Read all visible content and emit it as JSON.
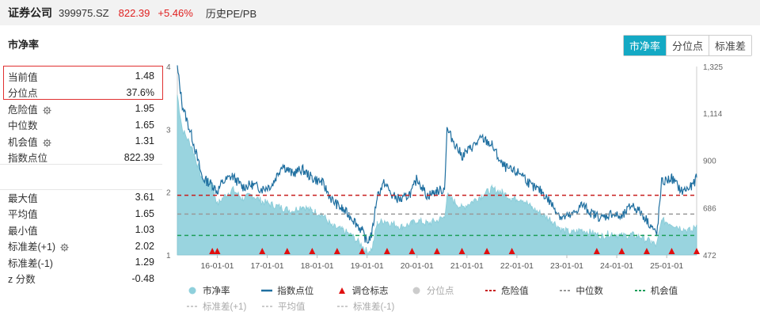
{
  "header": {
    "name": "证券公司",
    "code": "399975.SZ",
    "price": "822.39",
    "change": "+5.46%",
    "history_label": "历史PE/PB"
  },
  "section_title": "市净率",
  "tabs": [
    {
      "label": "市净率",
      "active": true
    },
    {
      "label": "分位点",
      "active": false
    },
    {
      "label": "标准差",
      "active": false
    }
  ],
  "stats_top": [
    {
      "label": "当前值",
      "value": "1.48",
      "gear": false
    },
    {
      "label": "分位点",
      "value": "37.6%",
      "gear": false
    },
    {
      "label": "危险值",
      "value": "1.95",
      "gear": true
    },
    {
      "label": "中位数",
      "value": "1.65",
      "gear": false
    },
    {
      "label": "机会值",
      "value": "1.31",
      "gear": true
    },
    {
      "label": "指数点位",
      "value": "822.39",
      "gear": false
    }
  ],
  "stats_bottom": [
    {
      "label": "最大值",
      "value": "3.61",
      "gear": false
    },
    {
      "label": "平均值",
      "value": "1.65",
      "gear": false
    },
    {
      "label": "最小值",
      "value": "1.03",
      "gear": false
    },
    {
      "label": "标准差(+1)",
      "value": "2.02",
      "gear": true
    },
    {
      "label": "标准差(-1)",
      "value": "1.29",
      "gear": false
    },
    {
      "label": "z 分数",
      "value": "-0.48",
      "gear": false
    }
  ],
  "legend": {
    "row1": [
      "市净率",
      "指数点位",
      "调仓标志",
      "分位点",
      "危险值",
      "中位数",
      "机会值"
    ],
    "row2": [
      "标准差(+1)",
      "平均值",
      "标准差(-1)"
    ]
  },
  "colors": {
    "accent": "#14a9c4",
    "pb_fill": "#8fd0dc",
    "index_line": "#1f6fa0",
    "danger": "#c81e1e",
    "median": "#999999",
    "opportunity": "#1e9e5a",
    "marker": "#e01010"
  },
  "chart_data": {
    "type": "area",
    "x_ticks": [
      "16-01-01",
      "17-01-01",
      "18-01-01",
      "19-01-01",
      "20-01-01",
      "21-01-01",
      "22-01-01",
      "23-01-01",
      "24-01-01",
      "25-01-01"
    ],
    "y_left_ticks": [
      "1",
      "2",
      "3",
      "4"
    ],
    "y_left_range": [
      1,
      4
    ],
    "y_right_ticks": [
      "472",
      "686",
      "900",
      "1,114",
      "1,325"
    ],
    "y_right_range": [
      472,
      1325
    ],
    "reference_lines": {
      "danger": 1.95,
      "median": 1.65,
      "opportunity": 1.31
    },
    "series": [
      {
        "name": "市净率",
        "axis": "left",
        "x": [
          2015.2,
          2015.3,
          2015.5,
          2015.7,
          2015.9,
          2016.0,
          2016.1,
          2016.3,
          2016.5,
          2016.7,
          2016.9,
          2017.1,
          2017.3,
          2017.5,
          2017.7,
          2017.9,
          2018.1,
          2018.3,
          2018.5,
          2018.7,
          2018.9,
          2019.0,
          2019.1,
          2019.2,
          2019.35,
          2019.5,
          2019.7,
          2019.9,
          2020.0,
          2020.2,
          2020.4,
          2020.55,
          2020.6,
          2020.75,
          2020.9,
          2021.1,
          2021.3,
          2021.5,
          2021.7,
          2021.9,
          2022.1,
          2022.3,
          2022.5,
          2022.7,
          2022.9,
          2023.1,
          2023.3,
          2023.5,
          2023.7,
          2023.9,
          2024.1,
          2024.3,
          2024.5,
          2024.7,
          2024.8,
          2024.9,
          2025.1,
          2025.3,
          2025.5,
          2025.6
        ],
        "values": [
          3.55,
          3.0,
          2.7,
          2.2,
          2.15,
          1.8,
          1.9,
          2.05,
          1.9,
          1.95,
          1.85,
          1.8,
          1.75,
          1.7,
          1.78,
          1.7,
          1.65,
          1.45,
          1.4,
          1.3,
          1.15,
          1.05,
          1.1,
          1.5,
          1.55,
          1.5,
          1.45,
          1.5,
          1.55,
          1.5,
          1.55,
          1.6,
          1.95,
          1.85,
          1.75,
          1.85,
          1.95,
          2.05,
          2.0,
          1.9,
          1.9,
          1.75,
          1.65,
          1.55,
          1.4,
          1.35,
          1.4,
          1.35,
          1.3,
          1.35,
          1.3,
          1.32,
          1.28,
          1.2,
          1.15,
          1.55,
          1.5,
          1.42,
          1.38,
          1.48
        ]
      },
      {
        "name": "指数点位",
        "axis": "right",
        "x": [
          2015.2,
          2015.3,
          2015.5,
          2015.7,
          2015.9,
          2016.0,
          2016.1,
          2016.3,
          2016.5,
          2016.7,
          2016.9,
          2017.1,
          2017.3,
          2017.5,
          2017.7,
          2017.9,
          2018.1,
          2018.3,
          2018.5,
          2018.7,
          2018.9,
          2019.0,
          2019.1,
          2019.2,
          2019.35,
          2019.5,
          2019.7,
          2019.9,
          2020.0,
          2020.2,
          2020.4,
          2020.55,
          2020.6,
          2020.75,
          2020.9,
          2021.1,
          2021.3,
          2021.5,
          2021.7,
          2021.9,
          2022.1,
          2022.3,
          2022.5,
          2022.7,
          2022.9,
          2023.1,
          2023.3,
          2023.5,
          2023.7,
          2023.9,
          2024.1,
          2024.3,
          2024.5,
          2024.7,
          2024.8,
          2024.9,
          2025.1,
          2025.3,
          2025.5,
          2025.6
        ],
        "values": [
          1320,
          1150,
          1000,
          820,
          790,
          760,
          800,
          830,
          780,
          790,
          770,
          790,
          880,
          840,
          860,
          820,
          800,
          720,
          680,
          640,
          580,
          530,
          570,
          740,
          800,
          740,
          720,
          760,
          820,
          740,
          760,
          770,
          1040,
          980,
          920,
          960,
          1000,
          970,
          880,
          850,
          840,
          780,
          760,
          700,
          640,
          650,
          700,
          660,
          640,
          660,
          640,
          700,
          660,
          600,
          560,
          800,
          820,
          760,
          780,
          822
        ]
      }
    ],
    "rebalance_markers_x": [
      2015.9,
      2016.0,
      2016.9,
      2017.4,
      2017.9,
      2018.4,
      2018.9,
      2019.4,
      2019.9,
      2020.4,
      2020.9,
      2021.4,
      2021.9,
      2023.6,
      2024.1,
      2024.6,
      2025.1,
      2025.6
    ]
  }
}
